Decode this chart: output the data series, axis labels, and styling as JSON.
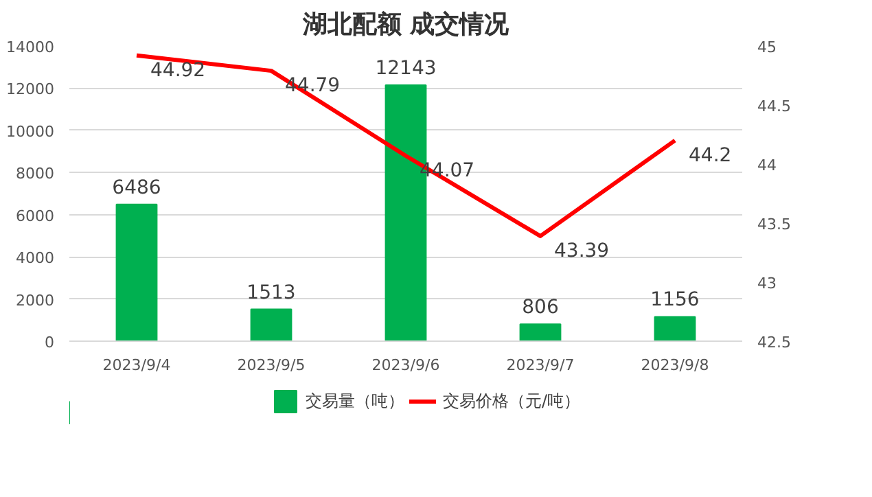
{
  "chart_data": {
    "type": "bar",
    "title": "湖北配额 成交情况",
    "categories": [
      "2023/9/4",
      "2023/9/5",
      "2023/9/6",
      "2023/9/7",
      "2023/9/8"
    ],
    "series": [
      {
        "name": "交易量（吨）",
        "color": "#00b050",
        "values": [
          6486,
          1513,
          12143,
          806,
          1156
        ]
      },
      {
        "name": "交易价格（元/吨）",
        "type": "line",
        "axis": "y2",
        "color": "#ff0000",
        "values": [
          44.92,
          44.79,
          44.07,
          43.39,
          44.2
        ]
      }
    ],
    "ylim": [
      0,
      14000
    ],
    "yticks": [
      0,
      2000,
      4000,
      6000,
      8000,
      10000,
      12000,
      14000
    ],
    "y2lim": [
      42.5,
      45
    ],
    "y2ticks": [
      42.5,
      43,
      43.5,
      44,
      44.5,
      45
    ],
    "grid": "y",
    "legend": "bottom",
    "data_labels": true
  }
}
